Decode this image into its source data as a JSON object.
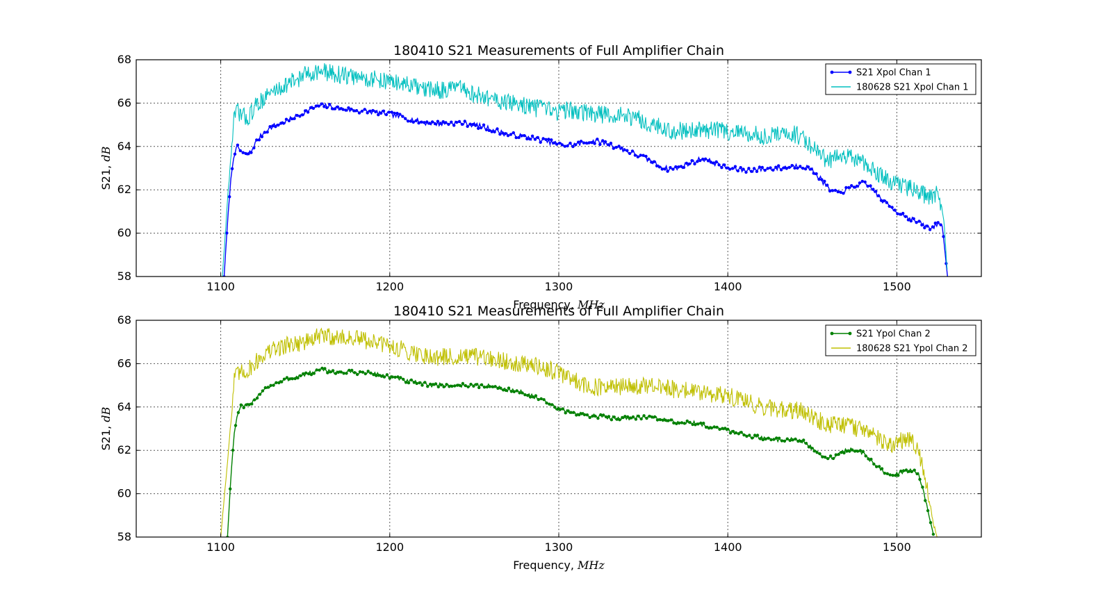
{
  "chart_data": [
    {
      "type": "line",
      "title": "180410 S21 Measurements of Full Amplifier Chain",
      "xlabel": "Frequency, ",
      "xlabel_unit": "MHz",
      "ylabel": "S21, ",
      "ylabel_unit": "dB",
      "xlim": [
        1050,
        1550
      ],
      "ylim": [
        58,
        68
      ],
      "xticks": [
        "1100",
        "1200",
        "1300",
        "1400",
        "1500"
      ],
      "yticks": [
        "58",
        "60",
        "62",
        "64",
        "66",
        "68"
      ],
      "grid": true,
      "legend_position": "top-right",
      "series": [
        {
          "name": "S21 Xpol Chan 1",
          "color": "#0000ff",
          "marker": "dot",
          "noise": 0.12,
          "x": [
            1102,
            1104,
            1106,
            1108,
            1110,
            1113,
            1115,
            1118,
            1120,
            1125,
            1130,
            1140,
            1150,
            1155,
            1160,
            1170,
            1180,
            1190,
            1200,
            1210,
            1220,
            1230,
            1240,
            1250,
            1260,
            1270,
            1280,
            1290,
            1300,
            1305,
            1310,
            1320,
            1325,
            1330,
            1340,
            1350,
            1360,
            1365,
            1370,
            1380,
            1385,
            1390,
            1400,
            1410,
            1420,
            1430,
            1440,
            1445,
            1450,
            1455,
            1460,
            1465,
            1470,
            1475,
            1480,
            1485,
            1490,
            1500,
            1510,
            1515,
            1520,
            1525,
            1527,
            1530
          ],
          "values": [
            58.0,
            60.5,
            62.5,
            63.7,
            63.95,
            63.7,
            63.6,
            63.75,
            64.1,
            64.6,
            64.9,
            65.2,
            65.6,
            65.8,
            65.9,
            65.75,
            65.65,
            65.6,
            65.5,
            65.3,
            65.1,
            65.05,
            65.1,
            65.0,
            64.8,
            64.55,
            64.45,
            64.3,
            64.1,
            64.05,
            64.1,
            64.25,
            64.2,
            64.1,
            63.8,
            63.5,
            63.1,
            62.95,
            63.0,
            63.3,
            63.45,
            63.3,
            63.0,
            62.9,
            62.95,
            63.0,
            63.1,
            63.1,
            62.9,
            62.5,
            62.0,
            61.85,
            62.0,
            62.15,
            62.3,
            62.1,
            61.6,
            61.0,
            60.6,
            60.4,
            60.2,
            60.5,
            60.3,
            58.0
          ]
        },
        {
          "name": "180628 S21 Xpol Chan 1",
          "color": "#00bfbf",
          "marker": "none",
          "noise": 0.42,
          "x": [
            1101,
            1104,
            1107,
            1108,
            1110,
            1113,
            1116,
            1120,
            1125,
            1130,
            1140,
            1150,
            1155,
            1160,
            1170,
            1180,
            1190,
            1200,
            1210,
            1220,
            1230,
            1240,
            1250,
            1260,
            1270,
            1280,
            1290,
            1300,
            1305,
            1310,
            1320,
            1330,
            1340,
            1350,
            1360,
            1365,
            1370,
            1380,
            1390,
            1400,
            1410,
            1420,
            1430,
            1440,
            1445,
            1450,
            1455,
            1460,
            1470,
            1475,
            1480,
            1485,
            1490,
            1500,
            1510,
            1515,
            1520,
            1524,
            1526,
            1528,
            1530
          ],
          "values": [
            58.0,
            61.5,
            64.5,
            65.4,
            65.6,
            65.4,
            65.3,
            65.8,
            66.2,
            66.5,
            66.9,
            67.3,
            67.45,
            67.45,
            67.3,
            67.2,
            67.1,
            67.0,
            66.85,
            66.6,
            66.6,
            66.7,
            66.4,
            66.2,
            66.0,
            65.9,
            65.7,
            65.6,
            65.7,
            65.6,
            65.5,
            65.45,
            65.4,
            65.2,
            64.9,
            64.7,
            64.7,
            64.8,
            64.75,
            64.7,
            64.6,
            64.5,
            64.55,
            64.55,
            64.4,
            64.0,
            63.5,
            63.4,
            63.5,
            63.4,
            63.2,
            63.0,
            62.7,
            62.3,
            62.0,
            61.8,
            61.7,
            61.9,
            61.4,
            60.5,
            58.0
          ]
        }
      ],
      "legend": [
        "S21 Xpol Chan 1",
        "180628 S21 Xpol Chan 1"
      ]
    },
    {
      "type": "line",
      "title": "180410 S21 Measurements of Full Amplifier Chain",
      "xlabel": "Frequency, ",
      "xlabel_unit": "MHz",
      "ylabel": "S21, ",
      "ylabel_unit": "dB",
      "xlim": [
        1050,
        1550
      ],
      "ylim": [
        58,
        68
      ],
      "xticks": [
        "1100",
        "1200",
        "1300",
        "1400",
        "1500"
      ],
      "yticks": [
        "58",
        "60",
        "62",
        "64",
        "66",
        "68"
      ],
      "grid": true,
      "legend_position": "top-right",
      "series": [
        {
          "name": "S21 Ypol Chan 2",
          "color": "#008000",
          "marker": "dot",
          "noise": 0.1,
          "x": [
            1104,
            1106,
            1108,
            1110,
            1112,
            1115,
            1118,
            1120,
            1125,
            1130,
            1140,
            1150,
            1160,
            1170,
            1180,
            1190,
            1200,
            1210,
            1220,
            1230,
            1240,
            1250,
            1260,
            1270,
            1280,
            1290,
            1300,
            1310,
            1320,
            1330,
            1340,
            1350,
            1360,
            1370,
            1380,
            1390,
            1400,
            1410,
            1420,
            1430,
            1440,
            1445,
            1450,
            1455,
            1460,
            1465,
            1470,
            1475,
            1480,
            1485,
            1490,
            1495,
            1500,
            1505,
            1510,
            1513,
            1516,
            1519,
            1522
          ],
          "values": [
            58.0,
            60.8,
            62.8,
            63.7,
            64.0,
            64.05,
            64.1,
            64.35,
            64.8,
            65.0,
            65.3,
            65.5,
            65.7,
            65.6,
            65.6,
            65.55,
            65.4,
            65.2,
            65.05,
            65.0,
            65.0,
            65.0,
            64.95,
            64.8,
            64.65,
            64.3,
            63.9,
            63.7,
            63.6,
            63.5,
            63.5,
            63.55,
            63.45,
            63.3,
            63.25,
            63.1,
            62.9,
            62.75,
            62.55,
            62.5,
            62.5,
            62.4,
            62.1,
            61.7,
            61.65,
            61.8,
            62.0,
            62.05,
            61.85,
            61.5,
            61.15,
            60.95,
            60.9,
            61.0,
            61.1,
            60.9,
            60.0,
            59.0,
            58.0
          ]
        },
        {
          "name": "180628 S21 Ypol Chan 2",
          "color": "#bfbf00",
          "marker": "none",
          "noise": 0.42,
          "x": [
            1100,
            1104,
            1107,
            1108,
            1110,
            1113,
            1116,
            1120,
            1125,
            1130,
            1140,
            1150,
            1160,
            1170,
            1180,
            1190,
            1200,
            1210,
            1220,
            1230,
            1240,
            1250,
            1260,
            1270,
            1280,
            1290,
            1300,
            1305,
            1310,
            1320,
            1330,
            1340,
            1350,
            1360,
            1370,
            1380,
            1390,
            1400,
            1410,
            1420,
            1430,
            1440,
            1445,
            1450,
            1460,
            1470,
            1480,
            1485,
            1490,
            1495,
            1500,
            1505,
            1510,
            1513,
            1516,
            1519,
            1522,
            1524
          ],
          "values": [
            58.0,
            61.5,
            64.2,
            65.3,
            65.5,
            65.6,
            65.7,
            66.0,
            66.4,
            66.6,
            66.9,
            67.0,
            67.3,
            67.2,
            67.15,
            67.0,
            66.8,
            66.6,
            66.4,
            66.3,
            66.3,
            66.3,
            66.2,
            66.1,
            66.0,
            65.8,
            65.6,
            65.4,
            65.2,
            64.9,
            64.9,
            64.95,
            64.95,
            64.9,
            64.8,
            64.75,
            64.6,
            64.5,
            64.3,
            64.0,
            63.9,
            63.85,
            63.8,
            63.5,
            63.2,
            63.1,
            63.0,
            62.8,
            62.5,
            62.2,
            62.4,
            62.5,
            62.4,
            61.9,
            61.0,
            59.8,
            58.5,
            58.0
          ]
        }
      ],
      "legend": [
        "S21 Ypol Chan 2",
        "180628 S21 Ypol Chan 2"
      ]
    }
  ]
}
